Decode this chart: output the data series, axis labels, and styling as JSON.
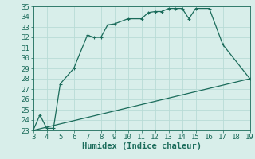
{
  "xlabel": "Humidex (Indice chaleur)",
  "xlim": [
    3,
    19
  ],
  "ylim": [
    23,
    35
  ],
  "xticks": [
    3,
    4,
    5,
    6,
    7,
    8,
    9,
    10,
    11,
    12,
    13,
    14,
    15,
    16,
    17,
    18,
    19
  ],
  "yticks": [
    23,
    24,
    25,
    26,
    27,
    28,
    29,
    30,
    31,
    32,
    33,
    34,
    35
  ],
  "line1_x": [
    3,
    3.5,
    4,
    4.5,
    5,
    6,
    7,
    7.5,
    8,
    8.5,
    9,
    10,
    11,
    11.5,
    12,
    12.5,
    13,
    13.5,
    14,
    14.5,
    15,
    16,
    17,
    19
  ],
  "line1_y": [
    23,
    24.5,
    23.2,
    23.2,
    27.5,
    29.0,
    32.2,
    32.0,
    32.0,
    33.2,
    33.3,
    33.8,
    33.8,
    34.4,
    34.5,
    34.5,
    34.8,
    34.8,
    34.8,
    33.8,
    34.8,
    34.8,
    31.3,
    28.0
  ],
  "line2_x": [
    3,
    19
  ],
  "line2_y": [
    23,
    28
  ],
  "line_color": "#1a6b5a",
  "bg_color": "#d8eeea",
  "grid_color": "#b8dcd6",
  "tick_label_fontsize": 6.5,
  "xlabel_fontsize": 7.5,
  "marker_size": 3,
  "lw": 0.9
}
